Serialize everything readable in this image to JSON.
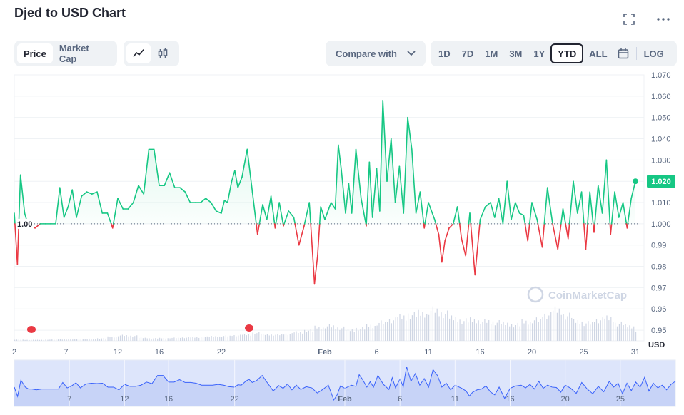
{
  "title": "Djed to USD Chart",
  "icons": {
    "fullscreen": "fullscreen-icon",
    "more": "more-icon"
  },
  "tabs": {
    "price": "Price",
    "market_cap": "Market Cap"
  },
  "chart_types": {
    "line": "line-chart-icon",
    "candle": "candlestick-icon"
  },
  "compare": {
    "label": "Compare with"
  },
  "ranges": [
    "1D",
    "7D",
    "1M",
    "3M",
    "1Y",
    "YTD",
    "ALL"
  ],
  "selected_range": "YTD",
  "log_label": "LOG",
  "calendar": "calendar-icon",
  "watermark": "CoinMarketCap",
  "currency_label": "USD",
  "current_price_label": "1.020",
  "baseline_label": "1.00",
  "colors": {
    "up": "#16c784",
    "down": "#ea3943",
    "volume": "#cfd6e4",
    "nav_fill": "#dde5fb",
    "nav_line": "#3861fb"
  },
  "chart_data": {
    "type": "line",
    "title": "Djed to USD Chart",
    "ylabel": "USD",
    "ylim": [
      0.945,
      1.07
    ],
    "y_ticks": [
      "1.070",
      "1.060",
      "1.050",
      "1.040",
      "1.030",
      "1.020",
      "1.010",
      "1.000",
      "0.99",
      "0.98",
      "0.97",
      "0.96",
      "0.95"
    ],
    "x_ticks": [
      "2",
      "7",
      "12",
      "16",
      "22",
      "Feb",
      "6",
      "11",
      "16",
      "20",
      "25",
      "31"
    ],
    "nav_x_ticks": [
      "7",
      "12",
      "16",
      "22",
      "Feb",
      "6",
      "11",
      "16",
      "20",
      "25"
    ],
    "baseline": 1.0,
    "x_day_range": [
      2,
      62
    ],
    "series": [
      {
        "name": "Price",
        "x": [
          2,
          2.3,
          2.6,
          3,
          3.3,
          3.6,
          4,
          4.5,
          5,
          5.5,
          6,
          6.4,
          6.8,
          7.2,
          7.6,
          8,
          8.5,
          9,
          9.5,
          10,
          10.5,
          11,
          11.5,
          12,
          12.5,
          13,
          13.5,
          14,
          14.5,
          15,
          15.5,
          16,
          16.5,
          17,
          17.5,
          18,
          18.5,
          19,
          19.5,
          20,
          20.5,
          21,
          21.5,
          22,
          22.3,
          22.6,
          23,
          23.3,
          23.6,
          24,
          24.5,
          25,
          25.5,
          26,
          26.4,
          26.8,
          27.2,
          27.6,
          28,
          28.5,
          29,
          29.5,
          30,
          30.5,
          31,
          31.3,
          31.6,
          32,
          32.3,
          32.6,
          33,
          33.3,
          33.6,
          34,
          34.3,
          34.6,
          35,
          35.5,
          36,
          36.3,
          36.6,
          37,
          37.3,
          37.6,
          38,
          38.4,
          38.8,
          39.2,
          39.6,
          40,
          40.4,
          40.8,
          41.2,
          41.6,
          42,
          42.3,
          42.6,
          43,
          43.3,
          43.6,
          44,
          44.4,
          44.8,
          45.2,
          45.6,
          46,
          46.5,
          47,
          47.5,
          48,
          48.4,
          48.8,
          49.2,
          49.6,
          50,
          50.4,
          50.8,
          51.2,
          51.6,
          52,
          52.5,
          53,
          53.5,
          54,
          54.5,
          55,
          55.5,
          56,
          56.4,
          56.8,
          57.2,
          57.6,
          58,
          58.4,
          58.8,
          59.2,
          59.6,
          60,
          60.4,
          60.8,
          61.2,
          61.6,
          62
        ],
        "values": [
          1.005,
          0.981,
          1.023,
          1.005,
          1.0,
          1.0,
          0.998,
          1.0,
          1.0,
          1.0,
          1.0,
          1.017,
          1.003,
          1.008,
          1.016,
          1.003,
          1.013,
          1.015,
          1.014,
          1.015,
          1.005,
          1.005,
          0.998,
          1.012,
          1.007,
          1.007,
          1.01,
          1.018,
          1.014,
          1.035,
          1.035,
          1.018,
          1.018,
          1.024,
          1.017,
          1.017,
          1.015,
          1.01,
          1.01,
          1.01,
          1.012,
          1.01,
          1.006,
          1.005,
          1.011,
          1.01,
          1.02,
          1.025,
          1.017,
          1.022,
          1.035,
          1.015,
          0.995,
          1.009,
          1.002,
          1.013,
          0.998,
          1.01,
          0.999,
          1.006,
          1.003,
          0.99,
          0.999,
          1.01,
          0.972,
          0.985,
          1.008,
          1.002,
          1.006,
          1.01,
          1.007,
          1.037,
          1.025,
          1.005,
          1.019,
          1.005,
          1.035,
          1.012,
          0.999,
          1.029,
          1.003,
          1.026,
          1.006,
          1.058,
          1.02,
          1.04,
          1.01,
          1.027,
          1.005,
          1.05,
          1.035,
          1.005,
          1.015,
          0.998,
          1.01,
          1.006,
          1.002,
          0.995,
          0.982,
          0.992,
          0.998,
          1.0,
          1.008,
          0.993,
          0.985,
          1.005,
          0.976,
          1.002,
          1.008,
          1.01,
          1.003,
          1.012,
          1.0,
          1.02,
          1.002,
          1.01,
          1.005,
          1.004,
          0.992,
          1.01,
          1.002,
          0.989,
          1.017,
          1.0,
          0.988,
          1.007,
          0.993,
          1.02,
          1.005,
          1.015,
          0.988,
          1.015,
          0.996,
          1.018,
          1.005,
          1.03,
          0.995,
          1.015,
          1.003,
          1.01,
          0.998,
          1.012,
          1.02
        ]
      },
      {
        "name": "Volume",
        "x": [
          2,
          3,
          4,
          5,
          6,
          7,
          8,
          9,
          10,
          11,
          12,
          13,
          14,
          15,
          16,
          17,
          18,
          19,
          20,
          21,
          22,
          23,
          24,
          25,
          26,
          27,
          28,
          29,
          30,
          31,
          32,
          33,
          34,
          35,
          36,
          37,
          38,
          39,
          40,
          41,
          42,
          43,
          44,
          45,
          46,
          47,
          48,
          49,
          50,
          51,
          52,
          53,
          54,
          55,
          56,
          57,
          58,
          59,
          60,
          61,
          62
        ],
        "values": [
          0.5,
          0.4,
          0.4,
          0.5,
          0.6,
          0.6,
          0.7,
          0.8,
          1.0,
          1.6,
          2.2,
          2.0,
          1.2,
          1.0,
          1.1,
          1.2,
          1.3,
          1.4,
          1.6,
          1.8,
          2.0,
          2.2,
          2.5,
          3.2,
          2.6,
          2.5,
          2.8,
          3.5,
          4.2,
          5.5,
          6.0,
          5.2,
          4.4,
          5.0,
          6.2,
          7.4,
          8.5,
          9.8,
          10.6,
          11.2,
          12.5,
          11.0,
          9.2,
          8.2,
          8.5,
          8.0,
          7.5,
          7.0,
          6.5,
          7.8,
          8.5,
          10.5,
          12.5,
          10.2,
          8.0,
          7.2,
          8.5,
          9.2,
          7.0,
          6.0,
          4.5
        ]
      }
    ]
  }
}
